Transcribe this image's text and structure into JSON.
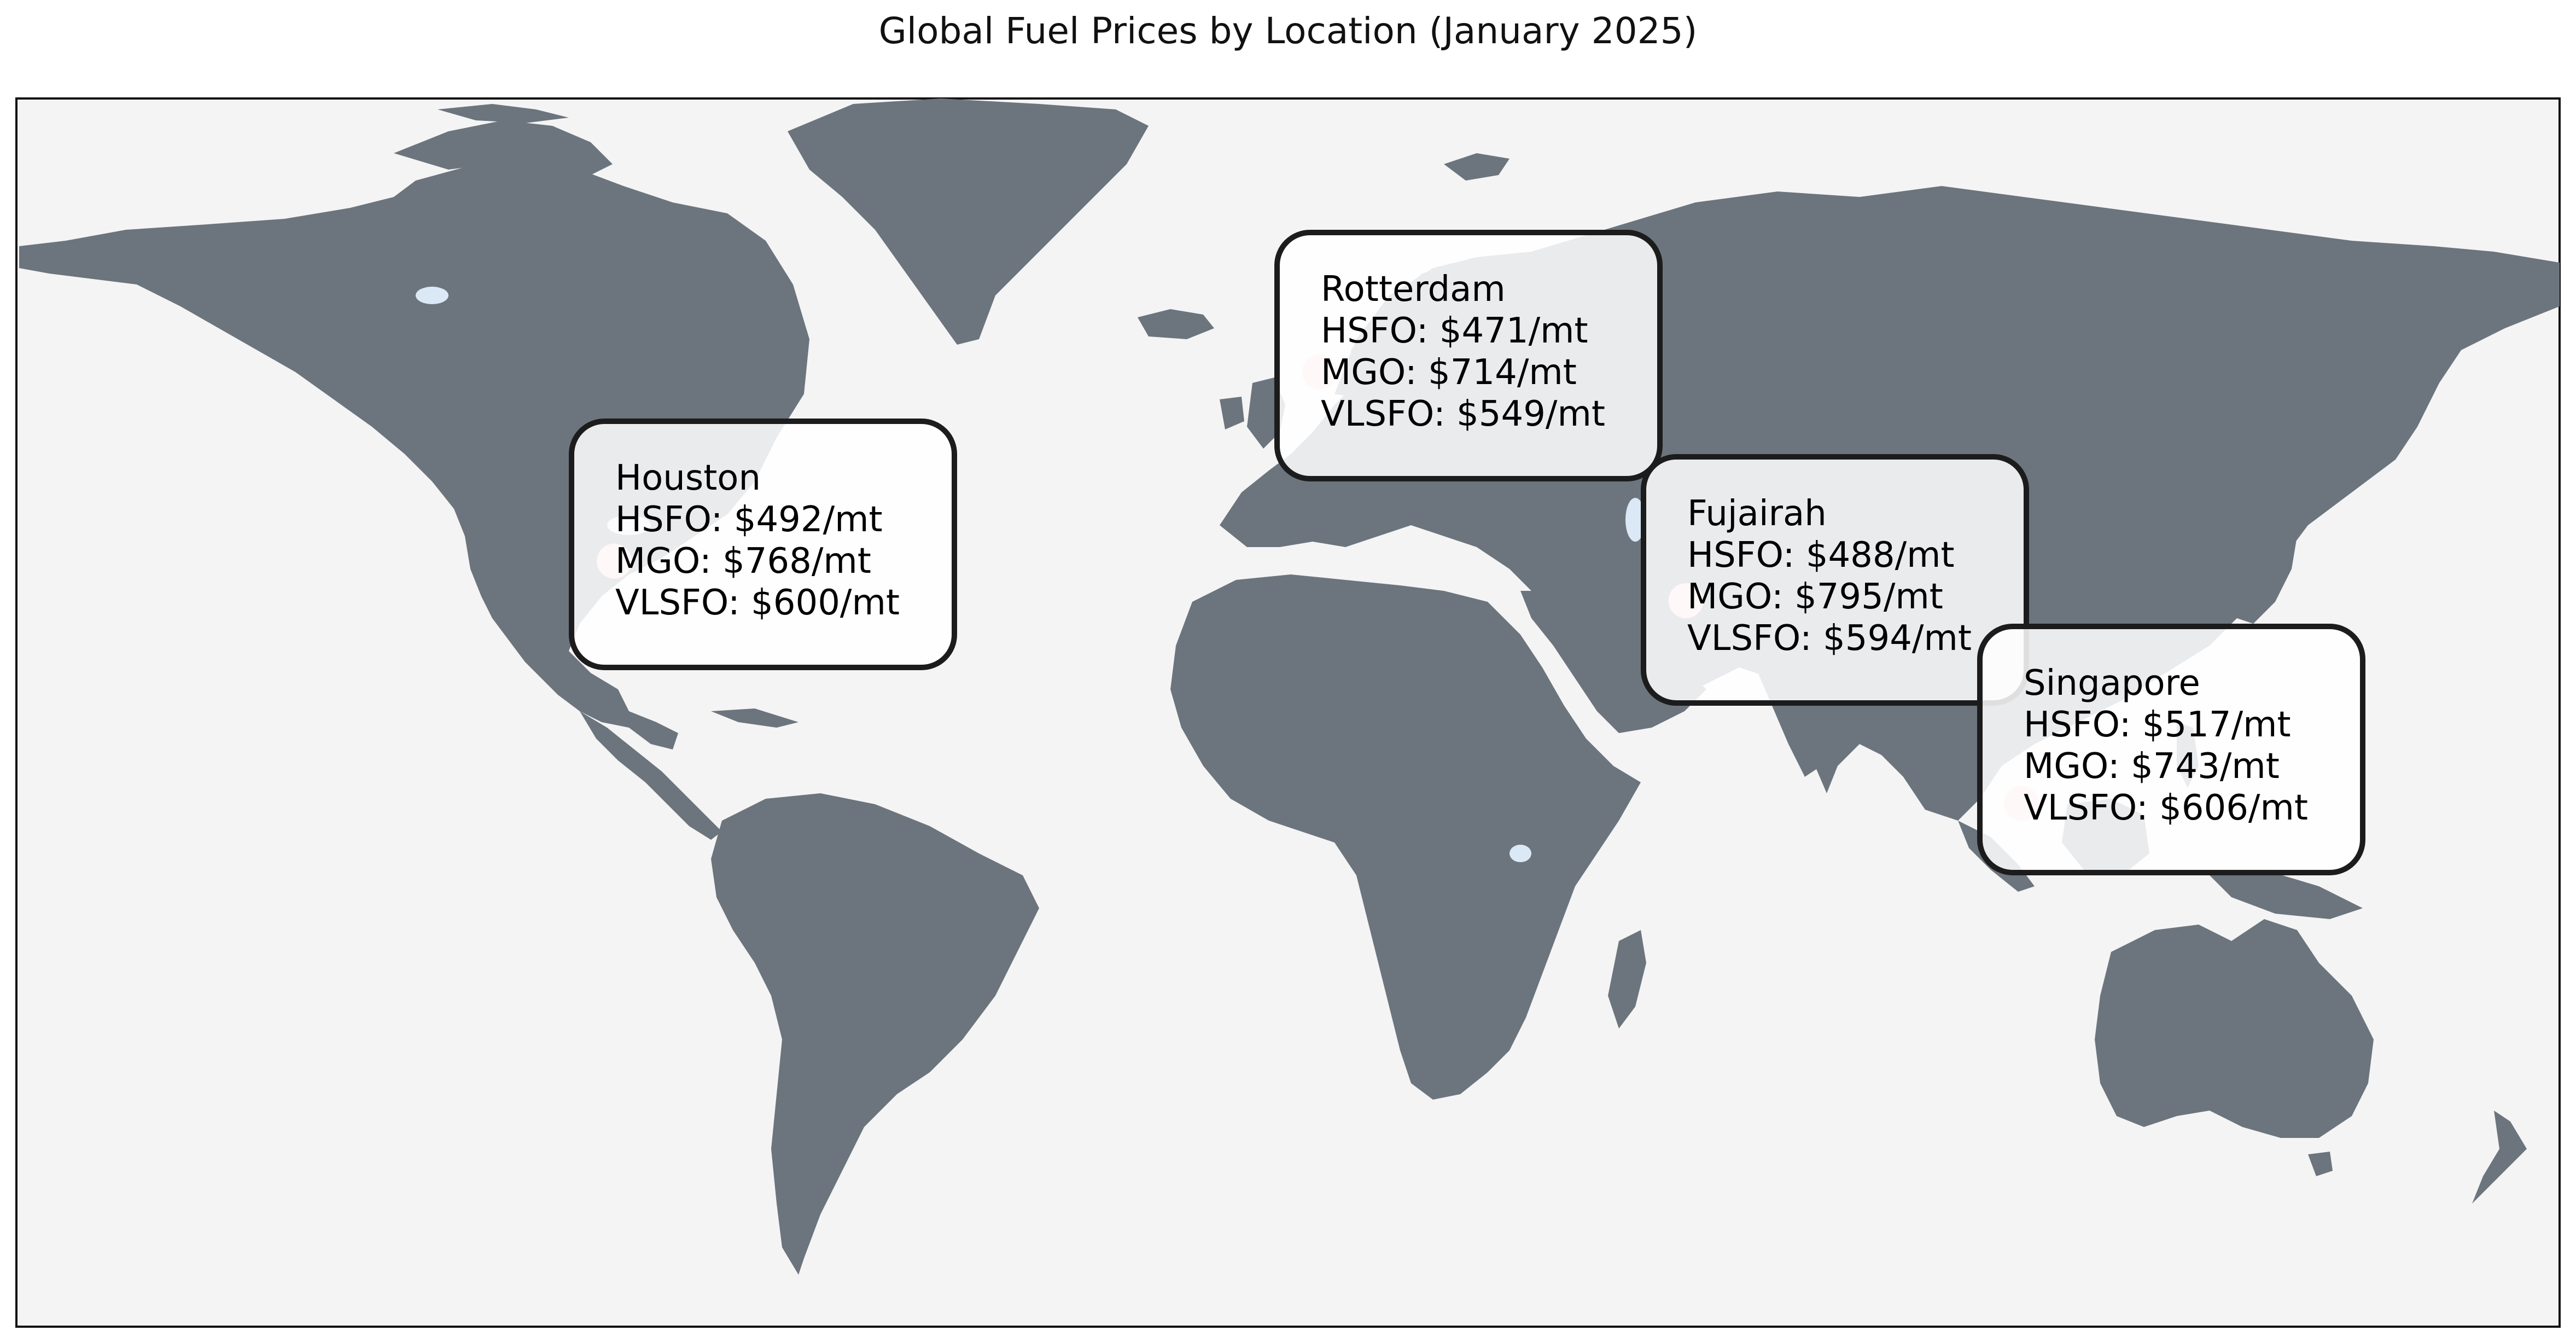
{
  "title": "Global Fuel Prices by Location (January 2025)",
  "colors": {
    "ocean": "#f4f4f4",
    "land": "#6c757d",
    "lakes": "#dbe9f7",
    "marker": "#ffc9cc",
    "box_border": "#1c1c1c"
  },
  "locations": [
    {
      "name": "Houston",
      "lines": [
        "HSFO: $492/mt",
        "MGO: $768/mt",
        "VLSFO: $600/mt"
      ],
      "lon": -95.37,
      "lat": 29.76
    },
    {
      "name": "Rotterdam",
      "lines": [
        "HSFO: $471/mt",
        "MGO: $714/mt",
        "VLSFO: $549/mt"
      ],
      "lon": 4.48,
      "lat": 51.92
    },
    {
      "name": "Fujairah",
      "lines": [
        "HSFO: $488/mt",
        "MGO: $795/mt",
        "VLSFO: $594/mt"
      ],
      "lon": 56.33,
      "lat": 25.12
    },
    {
      "name": "Singapore",
      "lines": [
        "HSFO: $517/mt",
        "MGO: $743/mt",
        "VLSFO: $606/mt"
      ],
      "lon": 103.82,
      "lat": 1.35
    }
  ]
}
